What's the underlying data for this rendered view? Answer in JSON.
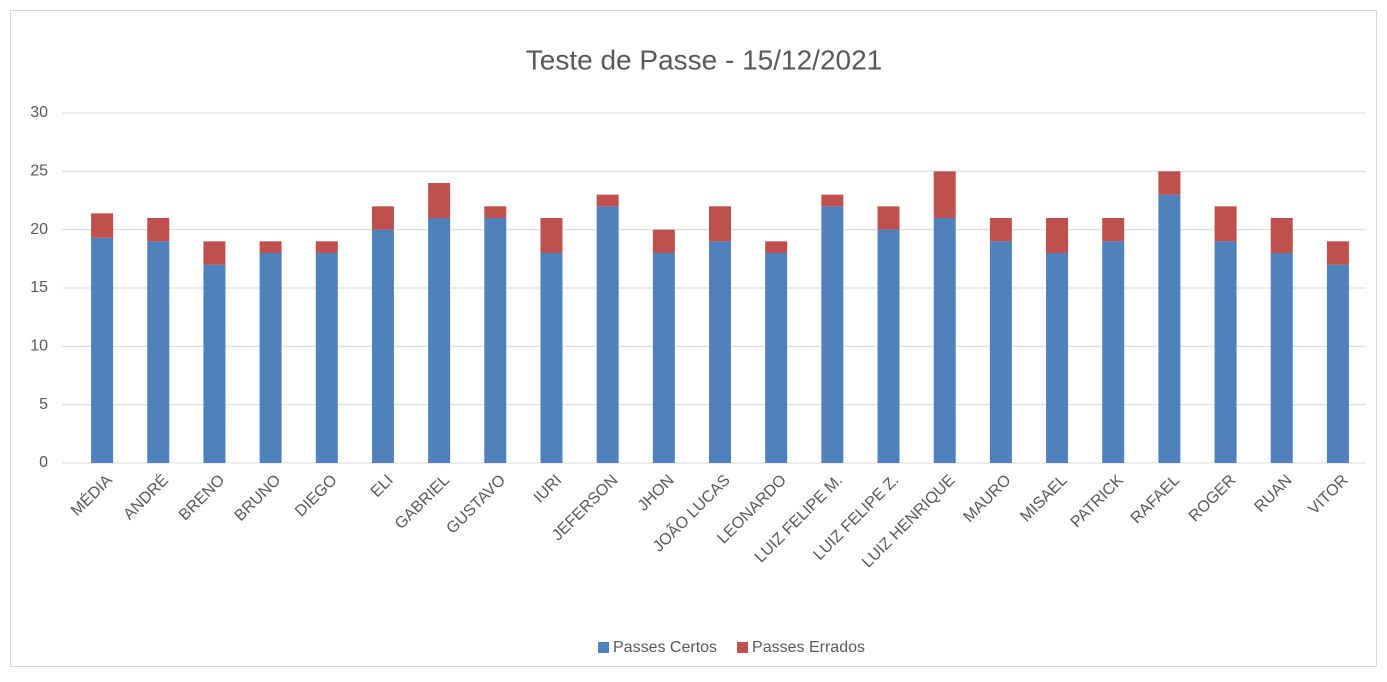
{
  "chart_data": {
    "type": "bar",
    "stacked": true,
    "title": "Teste de Passe - 15/12/2021",
    "categories": [
      "MÉDIA",
      "ANDRÉ",
      "BRENO",
      "BRUNO",
      "DIEGO",
      "ELI",
      "GABRIEL",
      "GUSTAVO",
      "IURI",
      "JEFERSON",
      "JHON",
      "JOÃO LUCAS",
      "LEONARDO",
      "LUIZ FELIPE M.",
      "LUIZ FELIPE Z.",
      "LUIZ HENRIQUE",
      "MAURO",
      "MISAEL",
      "PATRICK",
      "RAFAEL",
      "ROGER",
      "RUAN",
      "VITOR"
    ],
    "series": [
      {
        "name": "Passes Certos",
        "color": "#4f81bd",
        "values": [
          19.3,
          19,
          17,
          18,
          18,
          20,
          21,
          21,
          18,
          22,
          18,
          19,
          18,
          22,
          20,
          21,
          19,
          18,
          19,
          23,
          19,
          18,
          17
        ]
      },
      {
        "name": "Passes Errados",
        "color": "#c0504d",
        "values": [
          2.1,
          2,
          2,
          1,
          1,
          2,
          3,
          1,
          3,
          1,
          2,
          3,
          1,
          1,
          2,
          4,
          2,
          3,
          2,
          2,
          3,
          3,
          2
        ]
      }
    ],
    "ylim": [
      0,
      30
    ],
    "yticks": [
      0,
      5,
      10,
      15,
      20,
      25,
      30
    ],
    "grid": true,
    "legend": "bottom"
  }
}
